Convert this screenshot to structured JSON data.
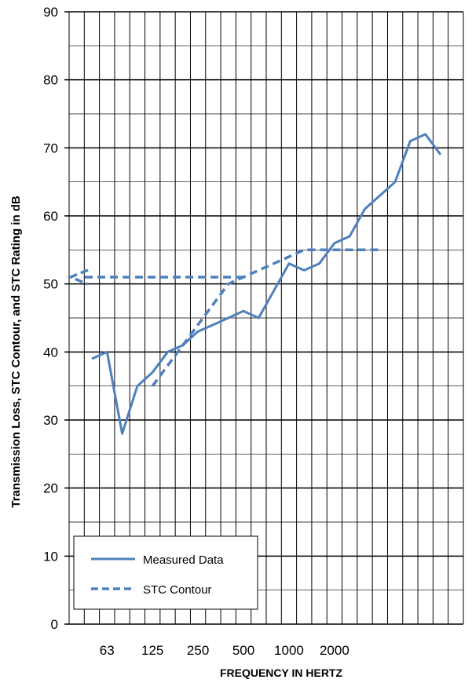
{
  "chart_data": {
    "type": "line",
    "title": "",
    "xlabel": "FREQUENCY IN HERTZ",
    "ylabel": "Transmission Loss, STC Contour, and STC Rating in dB",
    "ylim": [
      0,
      90
    ],
    "yticks": [
      "0",
      "10",
      "20",
      "30",
      "40",
      "50",
      "60",
      "70",
      "80",
      "90"
    ],
    "x_categories_count": 26,
    "xtick_labels": [
      {
        "index": 3,
        "label": "63"
      },
      {
        "index": 6,
        "label": "125"
      },
      {
        "index": 9,
        "label": "250"
      },
      {
        "index": 12,
        "label": "500"
      },
      {
        "index": 15,
        "label": "1000"
      },
      {
        "index": 18,
        "label": "2000"
      }
    ],
    "grid": true,
    "legend_position": "bottom-left",
    "series": [
      {
        "name": "Measured Data",
        "style": "solid",
        "color": "#4f81bd",
        "points": [
          [
            2,
            39
          ],
          [
            3,
            40
          ],
          [
            4,
            28
          ],
          [
            5,
            35
          ],
          [
            6,
            37
          ],
          [
            7,
            40
          ],
          [
            8,
            41
          ],
          [
            9,
            43
          ],
          [
            10,
            44
          ],
          [
            11,
            45
          ],
          [
            12,
            46
          ],
          [
            13,
            45
          ],
          [
            14,
            49
          ],
          [
            15,
            53
          ],
          [
            16,
            52
          ],
          [
            17,
            53
          ],
          [
            18,
            56
          ],
          [
            19,
            57
          ],
          [
            20,
            61
          ],
          [
            21,
            63
          ],
          [
            22,
            65
          ],
          [
            23,
            71
          ],
          [
            24,
            72
          ],
          [
            25,
            69
          ]
        ]
      },
      {
        "name": "STC Contour",
        "style": "dashed",
        "color": "#4f81bd",
        "points": [
          [
            6,
            35
          ],
          [
            7,
            38
          ],
          [
            8,
            41
          ],
          [
            9,
            44
          ],
          [
            10,
            47
          ],
          [
            11,
            50
          ],
          [
            12,
            51
          ],
          [
            13,
            52
          ],
          [
            14,
            53
          ],
          [
            15,
            54
          ],
          [
            16,
            55
          ],
          [
            17,
            55
          ],
          [
            18,
            55
          ],
          [
            19,
            55
          ],
          [
            20,
            55
          ],
          [
            21,
            55
          ]
        ]
      }
    ],
    "stc_rating": {
      "value": 51,
      "from_index": 12,
      "style": "dashed-arrow"
    }
  }
}
